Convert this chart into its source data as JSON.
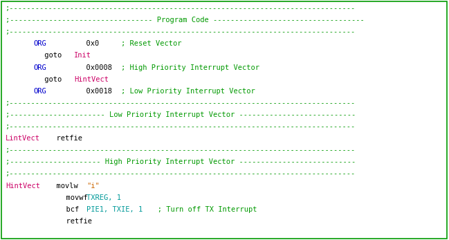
{
  "bg_color": "#ffffff",
  "border_color": "#009900",
  "font_size": 7.5,
  "lines": [
    [
      {
        "text": ";--------------------------------------------------------------------------------",
        "color": "#009900"
      }
    ],
    [
      {
        "text": ";--------------------------------- Program Code -----------------------------------",
        "color": "#009900"
      }
    ],
    [
      {
        "text": ";--------------------------------------------------------------------------------",
        "color": "#009900"
      }
    ],
    [
      {
        "text": "         ",
        "color": "#000000"
      },
      {
        "text": "ORG",
        "color": "#0000cc"
      },
      {
        "text": "          0x0            ; Reset Vector",
        "color": "#009900",
        "pre_black": "          0x0            "
      }
    ],
    [
      {
        "text": "         goto",
        "color": "#000000"
      },
      {
        "text": "         ",
        "color": "#000000"
      },
      {
        "text": "Init",
        "color": "#cc0066"
      }
    ],
    [
      {
        "text": "         ",
        "color": "#000000"
      },
      {
        "text": "ORG",
        "color": "#0000cc"
      },
      {
        "text": "          0x0008         ; High Priority Interrupt Vector",
        "color": "#009900",
        "pre_black": "          0x0008         "
      }
    ],
    [
      {
        "text": "         goto",
        "color": "#000000"
      },
      {
        "text": "         ",
        "color": "#000000"
      },
      {
        "text": "HintVect",
        "color": "#cc0066"
      }
    ],
    [
      {
        "text": "         ",
        "color": "#000000"
      },
      {
        "text": "ORG",
        "color": "#0000cc"
      },
      {
        "text": "          0x0018         ; Low Priority Interrupt Vector",
        "color": "#009900",
        "pre_black": "          0x0018         "
      }
    ],
    [
      {
        "text": ";--------------------------------------------------------------------------------",
        "color": "#009900"
      }
    ],
    [
      {
        "text": ";---------------------- Low Priority Interrupt Vector ---------------------------",
        "color": "#009900"
      }
    ],
    [
      {
        "text": ";--------------------------------------------------------------------------------",
        "color": "#009900"
      }
    ],
    [
      {
        "text": "LintVect",
        "color": "#cc0066"
      },
      {
        "text": "      retfie",
        "color": "#000000"
      }
    ],
    [
      {
        "text": ";--------------------------------------------------------------------------------",
        "color": "#009900"
      }
    ],
    [
      {
        "text": ";--------------------- High Priority Interrupt Vector ---------------------------",
        "color": "#009900"
      }
    ],
    [
      {
        "text": ";--------------------------------------------------------------------------------",
        "color": "#009900"
      }
    ],
    [
      {
        "text": "HintVect",
        "color": "#cc0066"
      },
      {
        "text": "      movlw       ",
        "color": "#000000"
      },
      {
        "text": "\"i\"",
        "color": "#cc6600"
      }
    ],
    [
      {
        "text": "              movwf       ",
        "color": "#000000"
      },
      {
        "text": "TXREG, 1",
        "color": "#009999"
      }
    ],
    [
      {
        "text": "              bcf         ",
        "color": "#000000"
      },
      {
        "text": "PIE1, TXIE, 1",
        "color": "#009999"
      },
      {
        "text": "       ; Turn off TX Interrupt",
        "color": "#009900"
      }
    ],
    [
      {
        "text": "              retfie",
        "color": "#000000"
      }
    ]
  ]
}
